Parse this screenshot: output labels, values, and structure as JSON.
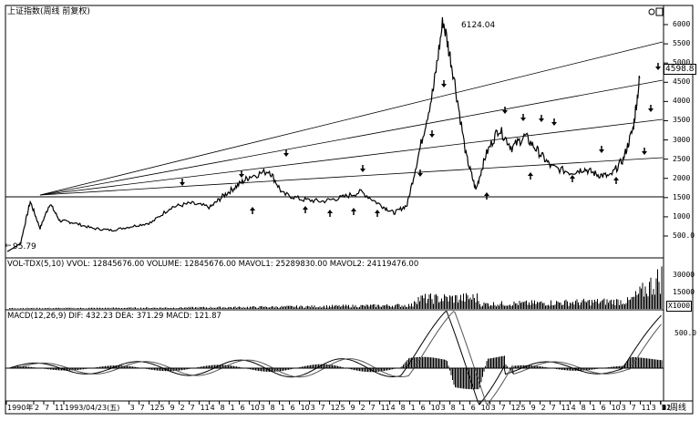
{
  "price_panel": {
    "title": "上证指数(周线 前复权)",
    "high_label": "6124.04",
    "low_label": "95.79",
    "current_label": "4598.8",
    "y_ticks": [
      "6000",
      "5500",
      "5000",
      "4500",
      "4000",
      "3500",
      "3000",
      "2500",
      "2000",
      "1500",
      "1000",
      "500.0"
    ]
  },
  "volume_panel": {
    "header": "VOL-TDX(5,10)  VVOL: 12845676.00  VOLUME: 12845676.00  MAVOL1: 25289830.00  MAVOL2: 24119476.00",
    "y_ticks": [
      "30000",
      "15000"
    ],
    "unit_label": "X1000"
  },
  "macd_panel": {
    "header": "MACD(12,26,9)  DIF: 432.23  DEA: 371.29  MACD: 121.87",
    "y_tick": "500.0"
  },
  "x_axis": {
    "labels": [
      "1990年",
      "2",
      "7",
      "11",
      "1993/04/23(五)",
      "3",
      "7",
      "12",
      "5",
      "9",
      "2",
      "7",
      "11",
      "4",
      "8",
      "1",
      "6",
      "10",
      "3",
      "8",
      "1",
      "6",
      "10",
      "3",
      "7",
      "12",
      "5",
      "9",
      "2",
      "7",
      "11",
      "4",
      "8",
      "1",
      "6",
      "10",
      "3",
      "8",
      "1",
      "6",
      "10",
      "3",
      "7",
      "12",
      "5",
      "9",
      "2",
      "7",
      "11",
      "4",
      "8",
      "1",
      "6",
      "10",
      "3",
      "7",
      "11",
      "3",
      "7",
      "12",
      "5",
      "9",
      "2",
      "7",
      "11",
      "4"
    ],
    "period_label": "周线"
  },
  "chart_data": {
    "type": "line",
    "title": "上证指数(周线 前复权)",
    "xlabel": "",
    "ylabel": "",
    "ylim": [
      0,
      6400
    ],
    "price_series": {
      "name": "上证指数",
      "points": [
        {
          "t": 0.0,
          "v": 96
        },
        {
          "t": 0.02,
          "v": 300
        },
        {
          "t": 0.035,
          "v": 1400
        },
        {
          "t": 0.05,
          "v": 700
        },
        {
          "t": 0.065,
          "v": 1350
        },
        {
          "t": 0.08,
          "v": 900
        },
        {
          "t": 0.1,
          "v": 850
        },
        {
          "t": 0.13,
          "v": 700
        },
        {
          "t": 0.16,
          "v": 650
        },
        {
          "t": 0.19,
          "v": 750
        },
        {
          "t": 0.22,
          "v": 850
        },
        {
          "t": 0.25,
          "v": 1250
        },
        {
          "t": 0.28,
          "v": 1350
        },
        {
          "t": 0.31,
          "v": 1250
        },
        {
          "t": 0.33,
          "v": 1550
        },
        {
          "t": 0.35,
          "v": 1800
        },
        {
          "t": 0.37,
          "v": 2050
        },
        {
          "t": 0.4,
          "v": 2200
        },
        {
          "t": 0.42,
          "v": 1600
        },
        {
          "t": 0.45,
          "v": 1450
        },
        {
          "t": 0.48,
          "v": 1400
        },
        {
          "t": 0.51,
          "v": 1500
        },
        {
          "t": 0.54,
          "v": 1650
        },
        {
          "t": 0.57,
          "v": 1300
        },
        {
          "t": 0.59,
          "v": 1100
        },
        {
          "t": 0.61,
          "v": 1300
        },
        {
          "t": 0.63,
          "v": 2800
        },
        {
          "t": 0.65,
          "v": 4300
        },
        {
          "t": 0.665,
          "v": 6124
        },
        {
          "t": 0.68,
          "v": 4800
        },
        {
          "t": 0.7,
          "v": 2600
        },
        {
          "t": 0.715,
          "v": 1700
        },
        {
          "t": 0.73,
          "v": 2600
        },
        {
          "t": 0.75,
          "v": 3300
        },
        {
          "t": 0.77,
          "v": 2800
        },
        {
          "t": 0.79,
          "v": 3100
        },
        {
          "t": 0.81,
          "v": 2700
        },
        {
          "t": 0.83,
          "v": 2300
        },
        {
          "t": 0.86,
          "v": 2150
        },
        {
          "t": 0.88,
          "v": 2250
        },
        {
          "t": 0.9,
          "v": 2100
        },
        {
          "t": 0.92,
          "v": 2050
        },
        {
          "t": 0.94,
          "v": 2500
        },
        {
          "t": 0.955,
          "v": 3300
        },
        {
          "t": 0.965,
          "v": 4599
        }
      ]
    },
    "annotations": [
      "6124.04",
      "95.79",
      "4598.8"
    ]
  }
}
